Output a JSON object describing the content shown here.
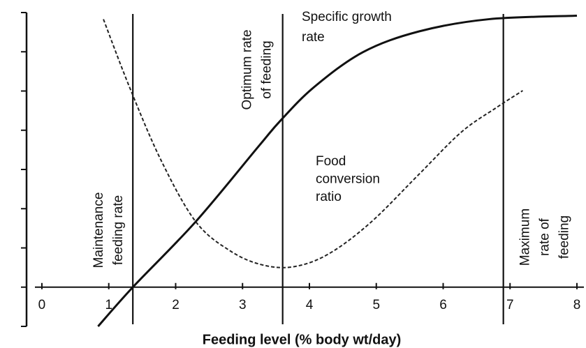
{
  "chart_data": {
    "type": "line",
    "xlabel": "Feeding level (% body wt/day)",
    "xlim": [
      -0.1,
      8
    ],
    "xticks": [
      0,
      1,
      2,
      3,
      4,
      5,
      6,
      7,
      8
    ],
    "ylim": [
      -1,
      7
    ],
    "yticks": [
      -1,
      0,
      1,
      2,
      3,
      4,
      5,
      6,
      7
    ],
    "series": [
      {
        "name": [
          "Specific growth",
          "rate"
        ],
        "color": "#111111",
        "dashed": false,
        "x": [
          0.84,
          1.36,
          2.3,
          3.24,
          3.57,
          4.07,
          4.8,
          5.64,
          6.68,
          8.0
        ],
        "values": [
          -1.0,
          0.0,
          1.67,
          3.59,
          4.25,
          5.1,
          5.99,
          6.52,
          6.83,
          6.92
        ]
      },
      {
        "name": [
          "Food",
          "conversion",
          "ratio"
        ],
        "color": "#222222",
        "dashed": true,
        "x": [
          0.92,
          1.31,
          1.78,
          2.3,
          2.82,
          3.29,
          3.76,
          4.28,
          4.91,
          5.64,
          6.27,
          6.79,
          7.19
        ],
        "values": [
          6.83,
          5.1,
          3.24,
          1.67,
          0.92,
          0.57,
          0.52,
          0.84,
          1.64,
          2.88,
          3.95,
          4.57,
          5.01
        ]
      }
    ],
    "reference_lines": [
      {
        "x": 1.36,
        "label": [
          "Maintenance",
          "feeding rate"
        ]
      },
      {
        "x": 3.6,
        "label": [
          "Optimum rate",
          "of feeding"
        ]
      },
      {
        "x": 6.9,
        "label": [
          "Maximum",
          "rate of",
          "feeding"
        ]
      }
    ]
  }
}
